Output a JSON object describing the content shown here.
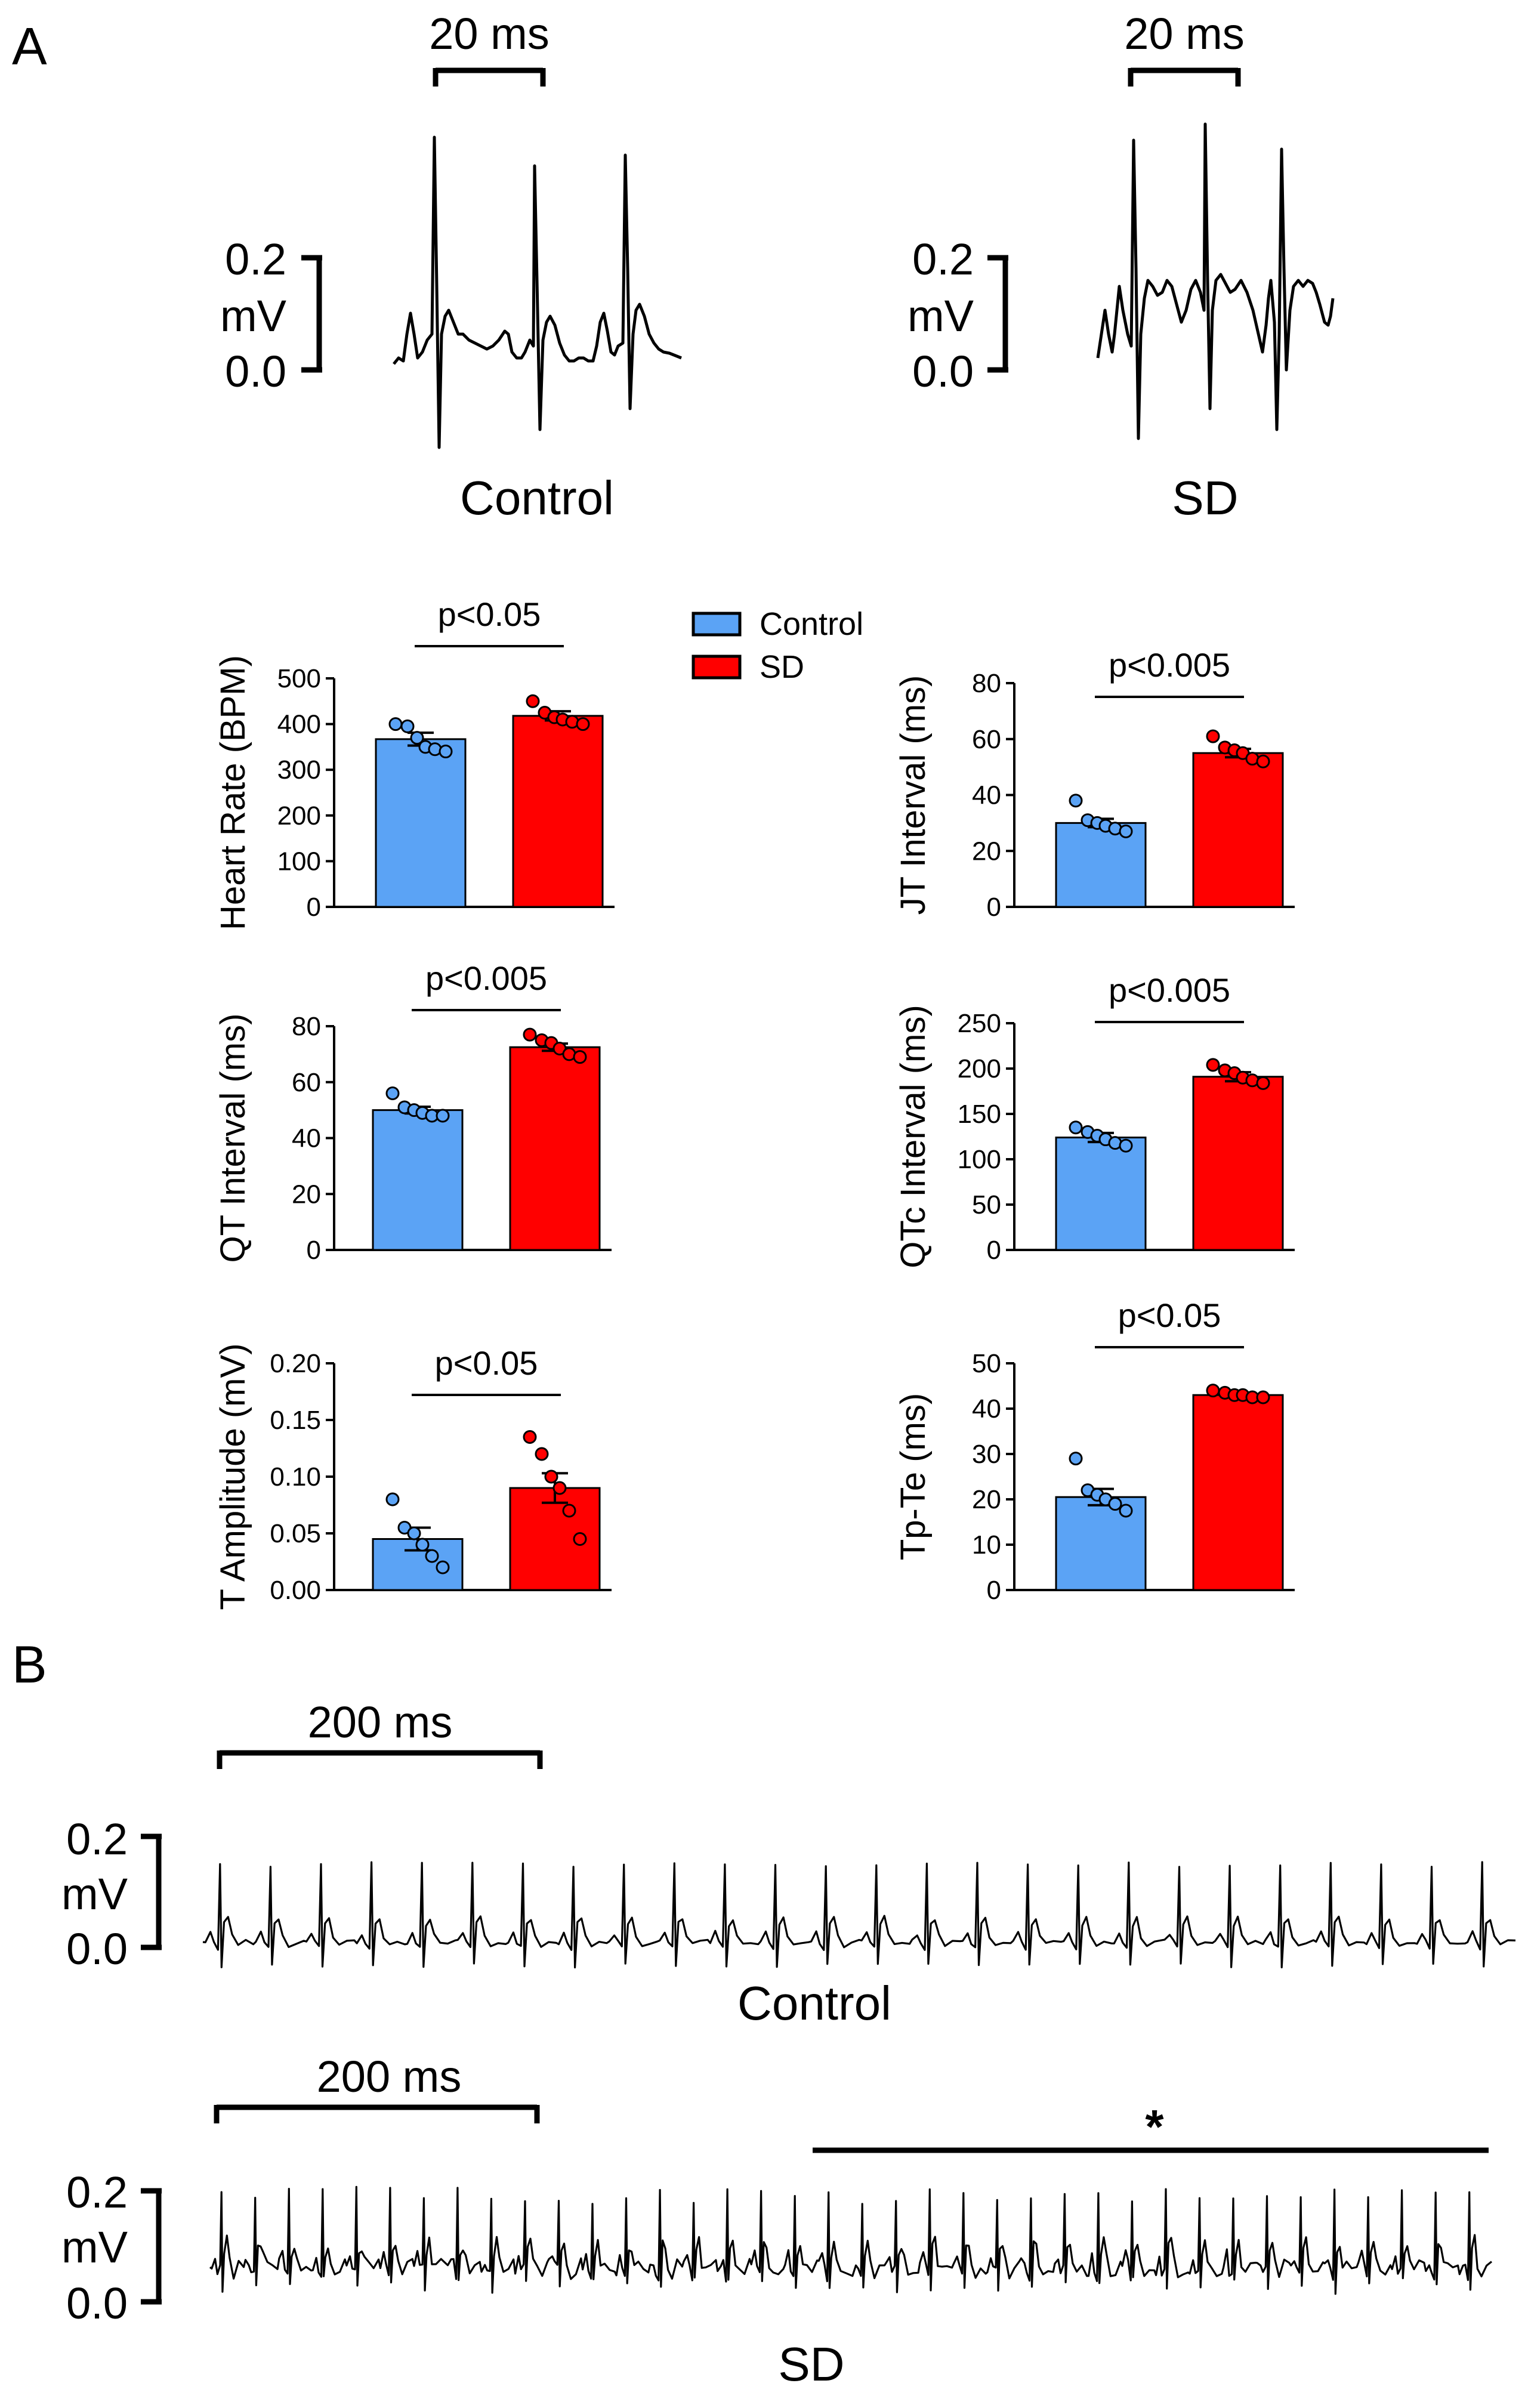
{
  "colors": {
    "control": "#5ba3f5",
    "sd": "#ff0000",
    "ink": "#000000"
  },
  "panel_labels": {
    "a": "A",
    "b": "B"
  },
  "ecg_panel_a": {
    "time_scale_label": "20 ms",
    "voltage_top": "0.2",
    "voltage_unit": "mV",
    "voltage_bottom": "0.0",
    "control_label": "Control",
    "sd_label": "SD"
  },
  "legend": {
    "control": "Control",
    "sd": "SD"
  },
  "ecg_panel_b": {
    "time_scale_label": "200 ms",
    "voltage_top": "0.2",
    "voltage_unit": "mV",
    "voltage_bottom": "0.0",
    "control_label": "Control",
    "sd_label": "SD",
    "arrhythmia_marker": "*"
  },
  "chart_data": [
    {
      "type": "bar",
      "id": "heart-rate",
      "categories": [
        "Control",
        "SD"
      ],
      "values": [
        367,
        418
      ],
      "sem": [
        14,
        10
      ],
      "points": [
        [
          400,
          395,
          370,
          350,
          345,
          340
        ],
        [
          450,
          425,
          415,
          410,
          405,
          400
        ]
      ],
      "ylabel": "Heart Rate (BPM)",
      "ylim": [
        0,
        500
      ],
      "yticks": [
        0,
        100,
        200,
        300,
        400,
        500
      ],
      "significance": "p<0.05"
    },
    {
      "type": "bar",
      "id": "jt-interval",
      "categories": [
        "Control",
        "SD"
      ],
      "values": [
        30,
        55
      ],
      "sem": [
        1.5,
        1.5
      ],
      "points": [
        [
          38,
          31,
          30,
          29,
          28,
          27
        ],
        [
          61,
          57,
          56,
          55,
          53,
          52
        ]
      ],
      "ylabel": "JT Interval (ms)",
      "ylim": [
        0,
        80
      ],
      "yticks": [
        0,
        20,
        40,
        60,
        80
      ],
      "significance": "p<0.005"
    },
    {
      "type": "bar",
      "id": "qt-interval",
      "categories": [
        "Control",
        "SD"
      ],
      "values": [
        50,
        72.5
      ],
      "sem": [
        1.2,
        1.3
      ],
      "points": [
        [
          56,
          51,
          50,
          49,
          48,
          48
        ],
        [
          77,
          75,
          74,
          72,
          70,
          69
        ]
      ],
      "ylabel": "QT Interval (ms)",
      "ylim": [
        0,
        80
      ],
      "yticks": [
        0,
        20,
        40,
        60,
        80
      ],
      "significance": "p<0.005"
    },
    {
      "type": "bar",
      "id": "qtc-interval",
      "categories": [
        "Control",
        "SD"
      ],
      "values": [
        124,
        191
      ],
      "sem": [
        5,
        5
      ],
      "points": [
        [
          135,
          130,
          126,
          122,
          118,
          115
        ],
        [
          204,
          198,
          195,
          190,
          187,
          184
        ]
      ],
      "ylabel": "QTc Interval (ms)",
      "ylim": [
        0,
        250
      ],
      "yticks": [
        0,
        50,
        100,
        150,
        200,
        250
      ],
      "significance": "p<0.005"
    },
    {
      "type": "bar",
      "id": "t-amplitude",
      "categories": [
        "Control",
        "SD"
      ],
      "values": [
        0.045,
        0.09
      ],
      "sem": [
        0.01,
        0.013
      ],
      "points": [
        [
          0.08,
          0.055,
          0.05,
          0.04,
          0.03,
          0.02
        ],
        [
          0.135,
          0.12,
          0.1,
          0.09,
          0.07,
          0.045
        ]
      ],
      "ylabel": "T Amplitude (mV)",
      "ylim": [
        0,
        0.2
      ],
      "yticks": [
        0,
        0.05,
        0.1,
        0.15,
        0.2
      ],
      "tick_labels": [
        "0.00",
        "0.05",
        "0.10",
        "0.15",
        "0.20"
      ],
      "significance": "p<0.05"
    },
    {
      "type": "bar",
      "id": "tp-te",
      "categories": [
        "Control",
        "SD"
      ],
      "values": [
        20.5,
        43
      ],
      "sem": [
        1.8,
        0.5
      ],
      "points": [
        [
          29,
          22,
          21,
          20,
          19,
          17.5
        ],
        [
          44,
          43.5,
          43,
          43,
          42.5,
          42.5
        ]
      ],
      "ylabel": "Tp-Te (ms)",
      "ylim": [
        0,
        50
      ],
      "yticks": [
        0,
        10,
        20,
        30,
        40,
        50
      ],
      "significance": "p<0.05"
    }
  ]
}
